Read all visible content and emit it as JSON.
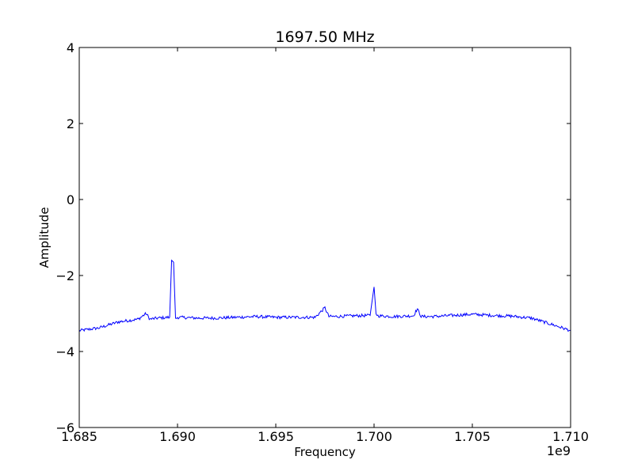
{
  "chart_data": {
    "type": "line",
    "title": "1697.50 MHz",
    "xlabel": "Frequency",
    "ylabel": "Amplitude",
    "x_offset_label": "1e9",
    "xlim": [
      1685000000.0,
      1710000000.0
    ],
    "ylim": [
      -6,
      4
    ],
    "grid": false,
    "x_ticks": [
      1685000000.0,
      1690000000.0,
      1695000000.0,
      1700000000.0,
      1705000000.0,
      1710000000.0
    ],
    "x_tick_labels": [
      "1.685",
      "1.690",
      "1.695",
      "1.700",
      "1.705",
      "1.710"
    ],
    "y_ticks": [
      -6,
      -4,
      -2,
      0,
      2,
      4
    ],
    "y_tick_labels": [
      "−6",
      "−4",
      "−2",
      "0",
      "2",
      "4"
    ],
    "series": [
      {
        "color": "#0000ff",
        "x": [
          1685000000.0,
          1686000000.0,
          1687000000.0,
          1688000000.0,
          1688400000.0,
          1688600000.0,
          1689000000.0,
          1689600000.0,
          1689700000.0,
          1689800000.0,
          1689900000.0,
          1690000000.0,
          1691000000.0,
          1692000000.0,
          1693000000.0,
          1694000000.0,
          1695000000.0,
          1696000000.0,
          1697000000.0,
          1697500000.0,
          1697700000.0,
          1698000000.0,
          1699000000.0,
          1699800000.0,
          1700000000.0,
          1700100000.0,
          1700200000.0,
          1701000000.0,
          1702000000.0,
          1702200000.0,
          1702400000.0,
          1703000000.0,
          1704000000.0,
          1705000000.0,
          1706000000.0,
          1707000000.0,
          1708000000.0,
          1709000000.0,
          1710000000.0
        ],
        "y": [
          -3.45,
          -3.38,
          -3.22,
          -3.15,
          -3.0,
          -3.15,
          -3.12,
          -3.1,
          -1.6,
          -1.65,
          -3.15,
          -3.1,
          -3.12,
          -3.12,
          -3.1,
          -3.08,
          -3.1,
          -3.1,
          -3.1,
          -2.85,
          -3.08,
          -3.08,
          -3.06,
          -3.05,
          -2.3,
          -3.0,
          -3.06,
          -3.08,
          -3.06,
          -2.88,
          -3.08,
          -3.08,
          -3.05,
          -3.02,
          -3.05,
          -3.07,
          -3.12,
          -3.28,
          -3.45
        ]
      }
    ]
  }
}
